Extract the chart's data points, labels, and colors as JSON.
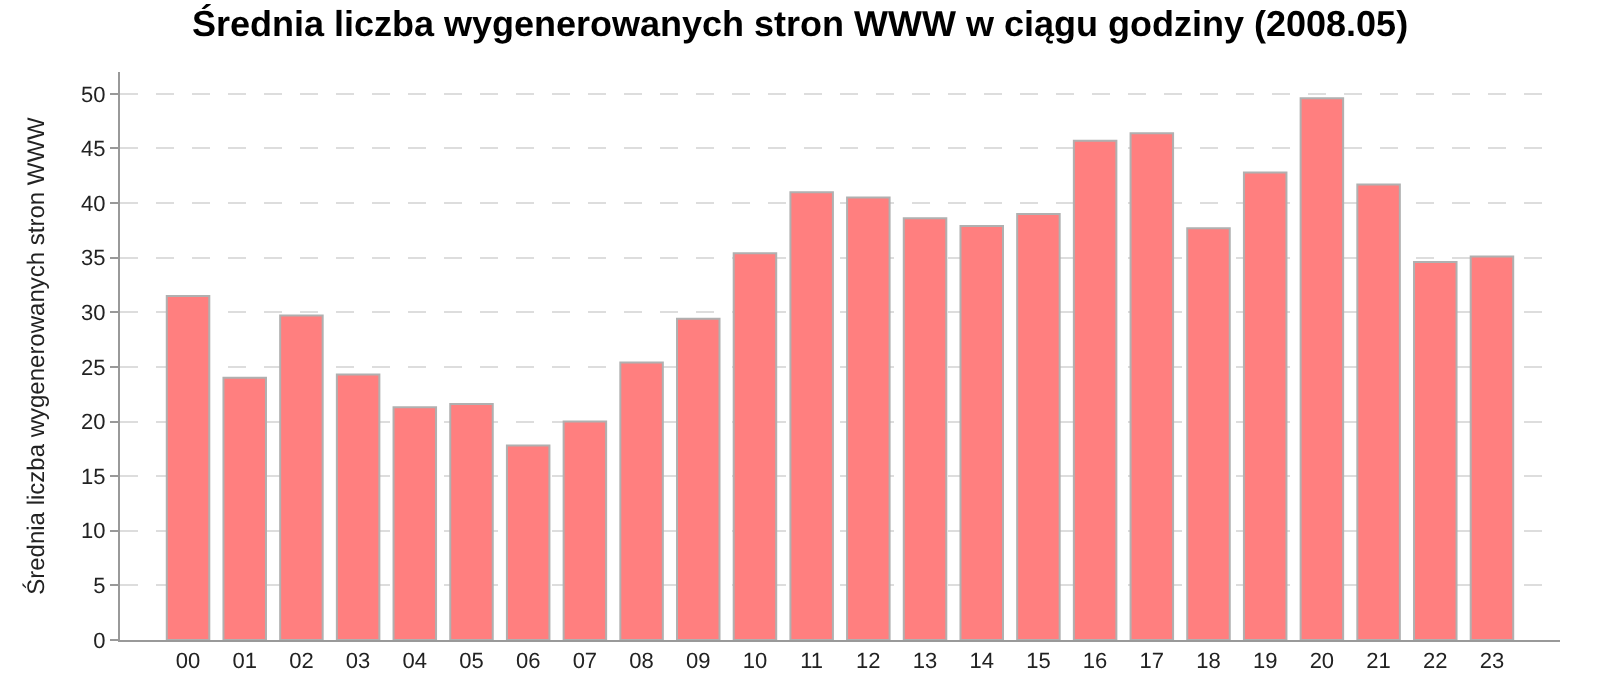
{
  "chart_data": {
    "type": "bar",
    "title": "Średnia liczba wygenerowanych stron WWW w ciągu godziny (2008.05)",
    "ylabel": "Średnia liczba wygenerowanych stron WWW",
    "categories": [
      "00",
      "01",
      "02",
      "03",
      "04",
      "05",
      "06",
      "07",
      "08",
      "09",
      "10",
      "11",
      "12",
      "13",
      "14",
      "15",
      "16",
      "17",
      "18",
      "19",
      "20",
      "21",
      "22",
      "23"
    ],
    "values": [
      31.5,
      24.0,
      29.7,
      24.3,
      21.3,
      21.6,
      17.8,
      20.0,
      25.4,
      29.4,
      35.4,
      41.0,
      40.5,
      38.6,
      37.9,
      39.0,
      45.7,
      46.4,
      37.7,
      42.8,
      49.6,
      41.7,
      34.6,
      35.1
    ],
    "color": "#ff7f7f",
    "ylim": [
      0,
      52
    ],
    "yticks": [
      0,
      5,
      10,
      15,
      20,
      25,
      30,
      35,
      40,
      45,
      50
    ],
    "grid": "y"
  }
}
